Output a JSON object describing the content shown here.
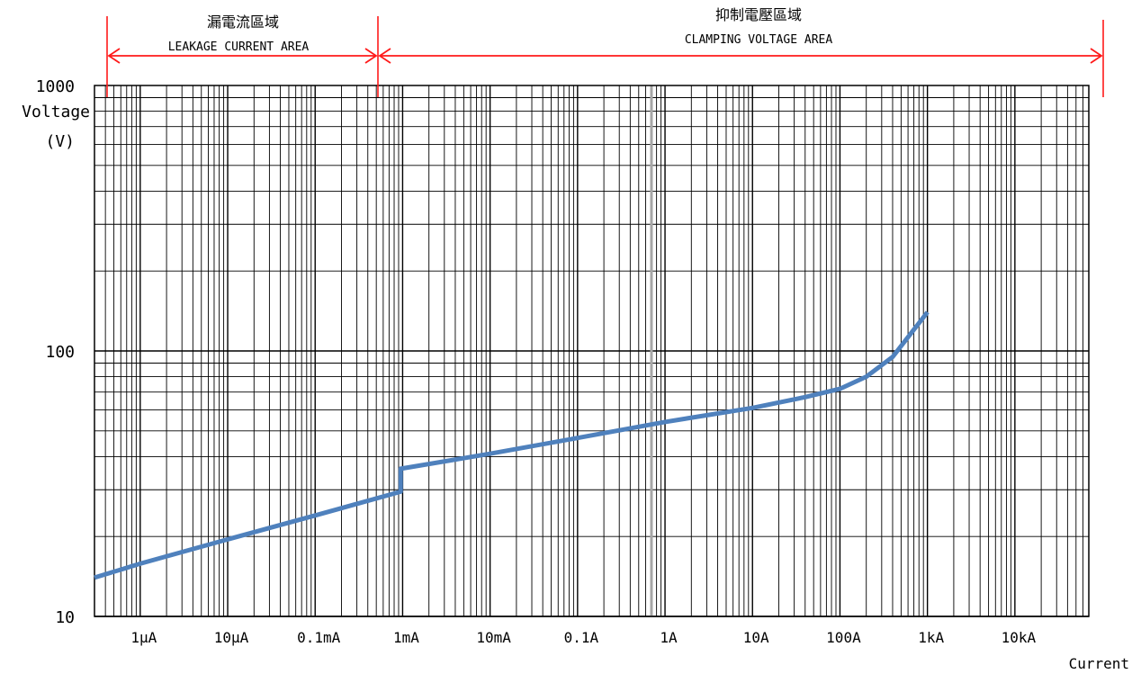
{
  "chart_data": {
    "type": "line",
    "x_scale": "log",
    "y_scale": "log",
    "xlabel": "Current",
    "ylabel_line1": "Voltage",
    "ylabel_line2": "(V)",
    "xlim": [
      "0.3μA",
      "70kA"
    ],
    "ylim": [
      10,
      1000
    ],
    "y_ticks": [
      {
        "label": "1000",
        "value": 1000
      },
      {
        "label": "100",
        "value": 100
      },
      {
        "label": "10",
        "value": 10
      }
    ],
    "x_ticks": [
      {
        "label": "1μA",
        "amps": 1e-06
      },
      {
        "label": "10μA",
        "amps": 1e-05
      },
      {
        "label": "0.1mA",
        "amps": 0.0001
      },
      {
        "label": "1mA",
        "amps": 0.001
      },
      {
        "label": "10mA",
        "amps": 0.01
      },
      {
        "label": "0.1A",
        "amps": 0.1
      },
      {
        "label": "1A",
        "amps": 1
      },
      {
        "label": "10A",
        "amps": 10
      },
      {
        "label": "100A",
        "amps": 100
      },
      {
        "label": "1kA",
        "amps": 1000
      },
      {
        "label": "10kA",
        "amps": 10000
      }
    ],
    "grid": true,
    "highlight_gridline_amps": 0.7,
    "regions": [
      {
        "title": "漏電流區域",
        "subtitle": "LEAKAGE CURRENT AREA",
        "from_amps": 3e-07,
        "to_amps": 0.0012
      },
      {
        "title": "抑制電壓區域",
        "subtitle": "CLAMPING VOLTAGE AREA",
        "from_amps": 0.0012,
        "to_amps": 70000
      }
    ],
    "series": [
      {
        "color": "#4f81bd",
        "points": [
          {
            "amps": 3e-07,
            "volts": 14
          },
          {
            "amps": 1e-06,
            "volts": 15.8
          },
          {
            "amps": 1e-05,
            "volts": 19.5
          },
          {
            "amps": 0.0001,
            "volts": 24
          },
          {
            "amps": 0.00095,
            "volts": 29.5
          },
          {
            "amps": 0.00095,
            "volts": 36
          },
          {
            "amps": 0.01,
            "volts": 41
          },
          {
            "amps": 0.1,
            "volts": 47
          },
          {
            "amps": 1,
            "volts": 54
          },
          {
            "amps": 10,
            "volts": 61
          },
          {
            "amps": 40,
            "volts": 67
          },
          {
            "amps": 100,
            "volts": 72
          },
          {
            "amps": 200,
            "volts": 80
          },
          {
            "amps": 400,
            "volts": 95
          },
          {
            "amps": 1000,
            "volts": 140
          }
        ]
      }
    ]
  }
}
